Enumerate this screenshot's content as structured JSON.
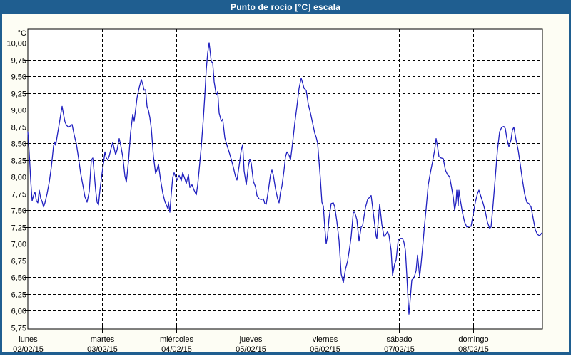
{
  "window": {
    "title": "Punto de rocío [°C] escala"
  },
  "colors": {
    "titlebar_bg": "#1f5e90",
    "frame_border": "#1f5e90",
    "title_text": "#ffffff",
    "content_bg": "#fdfdf4",
    "plot_bg": "#ffffff",
    "grid": "#000000",
    "axis_text": "#000000",
    "line": "#2020c0"
  },
  "chart_data": {
    "type": "line",
    "title": "Punto de rocío [°C] escala",
    "ylabel_unit": "°C",
    "y_axis": {
      "min": 5.75,
      "max": 10.0,
      "step": 0.25,
      "decimal_separator": ",",
      "top_of_plot_value": 10.21
    },
    "x_axis": {
      "range_days": [
        0,
        6.933
      ],
      "tick_every_days": 1,
      "days": [
        {
          "name": "lunes",
          "date": "02/02/15"
        },
        {
          "name": "martes",
          "date": "03/02/15"
        },
        {
          "name": "miércoles",
          "date": "04/02/15"
        },
        {
          "name": "jueves",
          "date": "05/02/15"
        },
        {
          "name": "viernes",
          "date": "06/02/15"
        },
        {
          "name": "sábado",
          "date": "07/02/15"
        },
        {
          "name": "domingo",
          "date": "08/02/15"
        }
      ]
    },
    "grid": {
      "horizontal": "dashed",
      "vertical": "dashed"
    },
    "legend": "none",
    "series": [
      {
        "name": "Punto de rocío",
        "points": [
          [
            0.0,
            8.67
          ],
          [
            0.019,
            8.35
          ],
          [
            0.038,
            7.95
          ],
          [
            0.058,
            7.64
          ],
          [
            0.077,
            7.72
          ],
          [
            0.096,
            7.77
          ],
          [
            0.115,
            7.64
          ],
          [
            0.135,
            7.61
          ],
          [
            0.154,
            7.8
          ],
          [
            0.173,
            7.68
          ],
          [
            0.192,
            7.63
          ],
          [
            0.212,
            7.55
          ],
          [
            0.231,
            7.61
          ],
          [
            0.26,
            7.75
          ],
          [
            0.288,
            7.92
          ],
          [
            0.317,
            8.15
          ],
          [
            0.346,
            8.46
          ],
          [
            0.365,
            8.52
          ],
          [
            0.375,
            8.47
          ],
          [
            0.394,
            8.6
          ],
          [
            0.423,
            8.79
          ],
          [
            0.452,
            8.99
          ],
          [
            0.462,
            9.05
          ],
          [
            0.481,
            8.93
          ],
          [
            0.5,
            8.82
          ],
          [
            0.519,
            8.77
          ],
          [
            0.548,
            8.74
          ],
          [
            0.577,
            8.76
          ],
          [
            0.596,
            8.78
          ],
          [
            0.625,
            8.62
          ],
          [
            0.654,
            8.49
          ],
          [
            0.683,
            8.28
          ],
          [
            0.712,
            8.05
          ],
          [
            0.74,
            7.88
          ],
          [
            0.769,
            7.7
          ],
          [
            0.798,
            7.62
          ],
          [
            0.827,
            7.78
          ],
          [
            0.856,
            8.25
          ],
          [
            0.875,
            8.28
          ],
          [
            0.894,
            8.05
          ],
          [
            0.913,
            7.8
          ],
          [
            0.933,
            7.62
          ],
          [
            0.952,
            7.58
          ],
          [
            0.971,
            7.8
          ],
          [
            1.0,
            8.05
          ],
          [
            1.019,
            8.2
          ],
          [
            1.038,
            8.37
          ],
          [
            1.058,
            8.28
          ],
          [
            1.077,
            8.25
          ],
          [
            1.096,
            8.31
          ],
          [
            1.125,
            8.44
          ],
          [
            1.144,
            8.51
          ],
          [
            1.163,
            8.42
          ],
          [
            1.183,
            8.33
          ],
          [
            1.202,
            8.4
          ],
          [
            1.231,
            8.57
          ],
          [
            1.25,
            8.48
          ],
          [
            1.279,
            8.3
          ],
          [
            1.308,
            8.01
          ],
          [
            1.327,
            7.92
          ],
          [
            1.356,
            8.23
          ],
          [
            1.385,
            8.66
          ],
          [
            1.413,
            8.93
          ],
          [
            1.433,
            8.83
          ],
          [
            1.452,
            9.0
          ],
          [
            1.471,
            9.18
          ],
          [
            1.5,
            9.33
          ],
          [
            1.529,
            9.45
          ],
          [
            1.548,
            9.38
          ],
          [
            1.567,
            9.29
          ],
          [
            1.587,
            9.3
          ],
          [
            1.606,
            9.05
          ],
          [
            1.625,
            8.99
          ],
          [
            1.644,
            8.88
          ],
          [
            1.663,
            8.72
          ],
          [
            1.692,
            8.3
          ],
          [
            1.721,
            8.05
          ],
          [
            1.74,
            8.1
          ],
          [
            1.76,
            8.19
          ],
          [
            1.788,
            7.95
          ],
          [
            1.817,
            7.76
          ],
          [
            1.846,
            7.63
          ],
          [
            1.885,
            7.53
          ],
          [
            1.894,
            7.62
          ],
          [
            1.913,
            7.47
          ],
          [
            1.933,
            7.75
          ],
          [
            1.952,
            7.99
          ],
          [
            1.971,
            8.06
          ],
          [
            1.99,
            8.0
          ],
          [
            2.01,
            7.95
          ],
          [
            2.038,
            8.02
          ],
          [
            2.067,
            7.94
          ],
          [
            2.087,
            8.06
          ],
          [
            2.115,
            7.97
          ],
          [
            2.135,
            7.9
          ],
          [
            2.163,
            8.03
          ],
          [
            2.183,
            7.84
          ],
          [
            2.212,
            7.88
          ],
          [
            2.24,
            7.8
          ],
          [
            2.269,
            7.73
          ],
          [
            2.288,
            7.88
          ],
          [
            2.308,
            8.1
          ],
          [
            2.337,
            8.45
          ],
          [
            2.365,
            8.88
          ],
          [
            2.385,
            9.22
          ],
          [
            2.404,
            9.6
          ],
          [
            2.423,
            9.85
          ],
          [
            2.442,
            10.0
          ],
          [
            2.452,
            9.91
          ],
          [
            2.471,
            9.72
          ],
          [
            2.49,
            9.7
          ],
          [
            2.51,
            9.42
          ],
          [
            2.538,
            9.22
          ],
          [
            2.558,
            9.27
          ],
          [
            2.577,
            8.95
          ],
          [
            2.606,
            8.83
          ],
          [
            2.625,
            8.86
          ],
          [
            2.654,
            8.58
          ],
          [
            2.683,
            8.47
          ],
          [
            2.712,
            8.37
          ],
          [
            2.74,
            8.26
          ],
          [
            2.769,
            8.14
          ],
          [
            2.798,
            8.0
          ],
          [
            2.817,
            7.95
          ],
          [
            2.846,
            8.16
          ],
          [
            2.875,
            8.4
          ],
          [
            2.894,
            8.48
          ],
          [
            2.913,
            8.09
          ],
          [
            2.942,
            7.88
          ],
          [
            2.971,
            8.16
          ],
          [
            2.99,
            8.26
          ],
          [
            3.01,
            8.2
          ],
          [
            3.038,
            7.93
          ],
          [
            3.067,
            7.85
          ],
          [
            3.087,
            7.72
          ],
          [
            3.115,
            7.67
          ],
          [
            3.144,
            7.66
          ],
          [
            3.173,
            7.67
          ],
          [
            3.192,
            7.6
          ],
          [
            3.212,
            7.59
          ],
          [
            3.24,
            7.8
          ],
          [
            3.269,
            8.03
          ],
          [
            3.288,
            8.1
          ],
          [
            3.308,
            8.02
          ],
          [
            3.337,
            7.82
          ],
          [
            3.365,
            7.67
          ],
          [
            3.385,
            7.61
          ],
          [
            3.404,
            7.77
          ],
          [
            3.423,
            7.86
          ],
          [
            3.452,
            8.1
          ],
          [
            3.471,
            8.3
          ],
          [
            3.49,
            8.37
          ],
          [
            3.519,
            8.32
          ],
          [
            3.538,
            8.25
          ],
          [
            3.567,
            8.51
          ],
          [
            3.596,
            8.8
          ],
          [
            3.625,
            9.05
          ],
          [
            3.654,
            9.32
          ],
          [
            3.683,
            9.47
          ],
          [
            3.702,
            9.4
          ],
          [
            3.721,
            9.32
          ],
          [
            3.75,
            9.29
          ],
          [
            3.779,
            9.08
          ],
          [
            3.808,
            8.95
          ],
          [
            3.837,
            8.8
          ],
          [
            3.865,
            8.65
          ],
          [
            3.885,
            8.59
          ],
          [
            3.904,
            8.5
          ],
          [
            3.923,
            8.23
          ],
          [
            3.942,
            7.95
          ],
          [
            3.962,
            7.62
          ],
          [
            3.981,
            7.56
          ],
          [
            4.0,
            7.25
          ],
          [
            4.019,
            7.0
          ],
          [
            4.038,
            7.12
          ],
          [
            4.058,
            7.38
          ],
          [
            4.087,
            7.6
          ],
          [
            4.115,
            7.61
          ],
          [
            4.135,
            7.55
          ],
          [
            4.163,
            7.33
          ],
          [
            4.192,
            7.05
          ],
          [
            4.221,
            6.55
          ],
          [
            4.25,
            6.42
          ],
          [
            4.279,
            6.62
          ],
          [
            4.308,
            6.74
          ],
          [
            4.337,
            6.95
          ],
          [
            4.356,
            7.11
          ],
          [
            4.385,
            7.47
          ],
          [
            4.404,
            7.47
          ],
          [
            4.433,
            7.36
          ],
          [
            4.462,
            7.04
          ],
          [
            4.49,
            7.25
          ],
          [
            4.51,
            7.27
          ],
          [
            4.548,
            7.54
          ],
          [
            4.577,
            7.66
          ],
          [
            4.625,
            7.72
          ],
          [
            4.654,
            7.46
          ],
          [
            4.692,
            7.11
          ],
          [
            4.702,
            7.08
          ],
          [
            4.74,
            7.59
          ],
          [
            4.769,
            7.29
          ],
          [
            4.798,
            7.11
          ],
          [
            4.817,
            7.13
          ],
          [
            4.846,
            7.18
          ],
          [
            4.865,
            7.13
          ],
          [
            4.894,
            6.9
          ],
          [
            4.913,
            6.53
          ],
          [
            4.942,
            6.7
          ],
          [
            4.962,
            6.76
          ],
          [
            4.99,
            7.06
          ],
          [
            5.019,
            7.08
          ],
          [
            5.048,
            7.08
          ],
          [
            5.067,
            7.02
          ],
          [
            5.087,
            6.9
          ],
          [
            5.106,
            6.53
          ],
          [
            5.125,
            6.1
          ],
          [
            5.135,
            5.95
          ],
          [
            5.154,
            6.2
          ],
          [
            5.173,
            6.46
          ],
          [
            5.202,
            6.49
          ],
          [
            5.231,
            6.6
          ],
          [
            5.25,
            6.83
          ],
          [
            5.279,
            6.51
          ],
          [
            5.298,
            6.7
          ],
          [
            5.327,
            7.05
          ],
          [
            5.346,
            7.3
          ],
          [
            5.365,
            7.52
          ],
          [
            5.394,
            7.88
          ],
          [
            5.423,
            8.06
          ],
          [
            5.452,
            8.22
          ],
          [
            5.481,
            8.4
          ],
          [
            5.5,
            8.57
          ],
          [
            5.519,
            8.45
          ],
          [
            5.538,
            8.3
          ],
          [
            5.567,
            8.28
          ],
          [
            5.596,
            8.27
          ],
          [
            5.625,
            8.1
          ],
          [
            5.654,
            8.03
          ],
          [
            5.683,
            8.0
          ],
          [
            5.702,
            7.88
          ],
          [
            5.731,
            7.7
          ],
          [
            5.75,
            7.5
          ],
          [
            5.769,
            7.62
          ],
          [
            5.779,
            7.8
          ],
          [
            5.798,
            7.57
          ],
          [
            5.808,
            7.8
          ],
          [
            5.827,
            7.65
          ],
          [
            5.856,
            7.46
          ],
          [
            5.885,
            7.32
          ],
          [
            5.913,
            7.25
          ],
          [
            5.942,
            7.26
          ],
          [
            5.971,
            7.26
          ],
          [
            6.0,
            7.44
          ],
          [
            6.029,
            7.62
          ],
          [
            6.058,
            7.75
          ],
          [
            6.077,
            7.8
          ],
          [
            6.106,
            7.7
          ],
          [
            6.135,
            7.6
          ],
          [
            6.163,
            7.48
          ],
          [
            6.192,
            7.32
          ],
          [
            6.221,
            7.23
          ],
          [
            6.24,
            7.25
          ],
          [
            6.269,
            7.6
          ],
          [
            6.298,
            8.0
          ],
          [
            6.327,
            8.4
          ],
          [
            6.356,
            8.67
          ],
          [
            6.385,
            8.74
          ],
          [
            6.413,
            8.75
          ],
          [
            6.433,
            8.72
          ],
          [
            6.452,
            8.58
          ],
          [
            6.481,
            8.45
          ],
          [
            6.51,
            8.55
          ],
          [
            6.529,
            8.7
          ],
          [
            6.548,
            8.74
          ],
          [
            6.577,
            8.55
          ],
          [
            6.606,
            8.4
          ],
          [
            6.635,
            8.18
          ],
          [
            6.663,
            7.95
          ],
          [
            6.692,
            7.75
          ],
          [
            6.721,
            7.62
          ],
          [
            6.75,
            7.6
          ],
          [
            6.779,
            7.55
          ],
          [
            6.808,
            7.38
          ],
          [
            6.837,
            7.21
          ],
          [
            6.865,
            7.14
          ],
          [
            6.894,
            7.12
          ],
          [
            6.923,
            7.16
          ]
        ]
      }
    ]
  }
}
